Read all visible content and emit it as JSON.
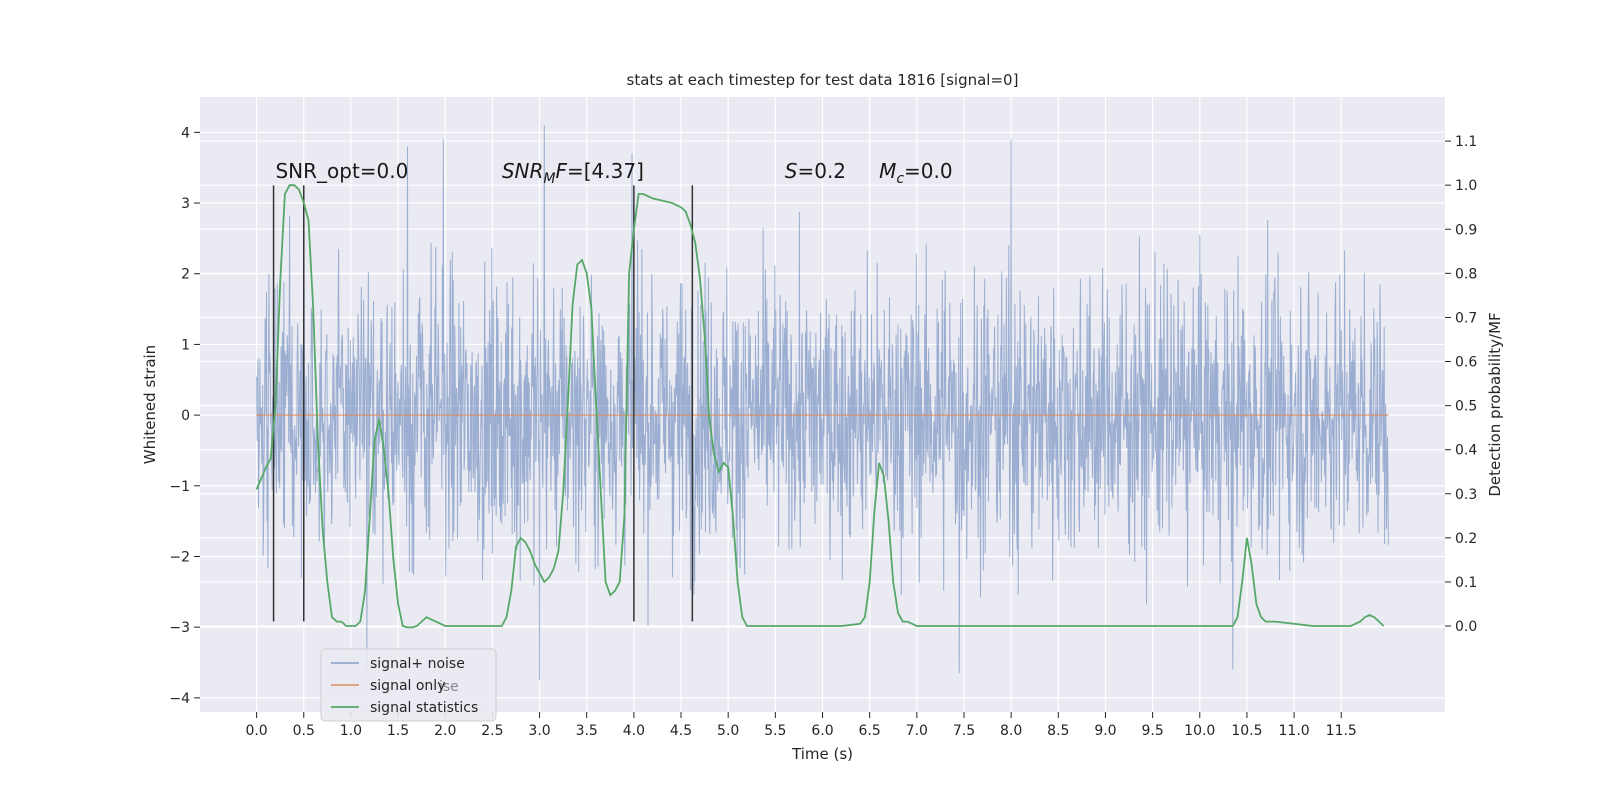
{
  "chart_data": {
    "type": "line",
    "title": "stats at each timestep for test data 1816 [signal=0]",
    "xlabel": "Time (s)",
    "ylabel_left": "Whitened strain",
    "ylabel_right": "Detection probability/MF",
    "xlim": [
      -0.6,
      12.6
    ],
    "ylim_left": [
      -4.2,
      4.5
    ],
    "ylim_right": [
      -0.195,
      1.2
    ],
    "x_ticks": [
      0.0,
      0.5,
      1.0,
      1.5,
      2.0,
      2.5,
      3.0,
      3.5,
      4.0,
      4.5,
      5.0,
      5.5,
      6.0,
      6.5,
      7.0,
      7.5,
      8.0,
      8.5,
      9.0,
      9.5,
      10.0,
      10.5,
      11.0,
      11.5
    ],
    "x_tick_labels": [
      "0.0",
      "0.5",
      "1.0",
      "1.5",
      "2.0",
      "2.5",
      "3.0",
      "3.5",
      "4.0",
      "4.5",
      "5.0",
      "5.5",
      "6.0",
      "6.5",
      "7.0",
      "7.5",
      "8.0",
      "8.5",
      "9.0",
      "9.5",
      "10.0",
      "10.5",
      "11.0",
      "11.5"
    ],
    "y_left_ticks": [
      -4,
      -3,
      -2,
      -1,
      0,
      1,
      2,
      3,
      4
    ],
    "y_left_tick_labels": [
      "−4",
      "−3",
      "−2",
      "−1",
      "0",
      "1",
      "2",
      "3",
      "4"
    ],
    "y_right_ticks": [
      0.0,
      0.1,
      0.2,
      0.3,
      0.4,
      0.5,
      0.6,
      0.7,
      0.8,
      0.9,
      1.0,
      1.1
    ],
    "y_right_tick_labels": [
      "0.0",
      "0.1",
      "0.2",
      "0.3",
      "0.4",
      "0.5",
      "0.6",
      "0.7",
      "0.8",
      "0.9",
      "1.0",
      "1.1"
    ],
    "grid": true,
    "series": [
      {
        "name": "signal+ noise",
        "color": "#4c72b0",
        "axis": "left",
        "note_range": [
          -3.75,
          4.1
        ],
        "x_range": [
          0.0,
          12.0
        ],
        "envelope_spikes": [
          {
            "x": 0.5,
            "y": 3.2
          },
          {
            "x": 1.6,
            "y": 3.8
          },
          {
            "x": 1.98,
            "y": 3.9
          },
          {
            "x": 3.05,
            "y": 4.1
          },
          {
            "x": 3.98,
            "y": 3.7
          },
          {
            "x": 8.0,
            "y": 3.9
          },
          {
            "x": 1.17,
            "y": -3.6
          },
          {
            "x": 3.0,
            "y": -3.75
          },
          {
            "x": 7.45,
            "y": -3.65
          },
          {
            "x": 10.35,
            "y": -3.6
          }
        ]
      },
      {
        "name": "signal only",
        "color": "#dd8452",
        "axis": "left",
        "x": [
          0.0,
          12.0
        ],
        "y": [
          0.0,
          0.0
        ]
      },
      {
        "name": "signal statistics",
        "color": "#55a868",
        "axis": "right",
        "x": [
          0.0,
          0.1,
          0.15,
          0.2,
          0.25,
          0.3,
          0.35,
          0.4,
          0.45,
          0.5,
          0.55,
          0.6,
          0.65,
          0.7,
          0.75,
          0.8,
          0.85,
          0.9,
          0.95,
          1.0,
          1.05,
          1.1,
          1.15,
          1.2,
          1.25,
          1.3,
          1.35,
          1.4,
          1.45,
          1.5,
          1.55,
          1.6,
          1.65,
          1.7,
          1.75,
          1.8,
          1.9,
          2.0,
          2.2,
          2.4,
          2.5,
          2.6,
          2.65,
          2.7,
          2.75,
          2.8,
          2.85,
          2.9,
          2.95,
          3.0,
          3.05,
          3.1,
          3.15,
          3.2,
          3.25,
          3.3,
          3.35,
          3.4,
          3.45,
          3.5,
          3.55,
          3.6,
          3.65,
          3.7,
          3.75,
          3.8,
          3.85,
          3.9,
          3.95,
          4.0,
          4.05,
          4.1,
          4.15,
          4.2,
          4.3,
          4.4,
          4.5,
          4.55,
          4.6,
          4.65,
          4.7,
          4.75,
          4.8,
          4.85,
          4.9,
          4.95,
          5.0,
          5.05,
          5.1,
          5.15,
          5.2,
          5.25,
          5.3,
          5.35,
          5.4,
          5.45,
          5.5,
          5.6,
          5.8,
          6.0,
          6.2,
          6.4,
          6.45,
          6.5,
          6.55,
          6.6,
          6.65,
          6.7,
          6.75,
          6.8,
          6.85,
          6.9,
          7.0,
          7.5,
          8.0,
          9.0,
          10.0,
          10.2,
          10.3,
          10.35,
          10.4,
          10.45,
          10.5,
          10.55,
          10.6,
          10.65,
          10.7,
          10.8,
          11.0,
          11.2,
          11.4,
          11.5,
          11.55,
          11.6,
          11.65,
          11.7,
          11.75,
          11.8,
          11.85,
          11.9,
          11.95
        ],
        "y": [
          0.31,
          0.36,
          0.38,
          0.5,
          0.78,
          0.98,
          1.0,
          1.0,
          0.99,
          0.96,
          0.92,
          0.72,
          0.42,
          0.22,
          0.1,
          0.02,
          0.01,
          0.01,
          0.0,
          0.0,
          0.0,
          0.01,
          0.08,
          0.25,
          0.42,
          0.47,
          0.4,
          0.3,
          0.15,
          0.05,
          0.0,
          -0.003,
          -0.003,
          0.0,
          0.01,
          0.02,
          0.01,
          0.0,
          0.0,
          0.0,
          0.0,
          0.0,
          0.02,
          0.08,
          0.18,
          0.2,
          0.19,
          0.17,
          0.14,
          0.12,
          0.1,
          0.11,
          0.13,
          0.17,
          0.3,
          0.5,
          0.73,
          0.82,
          0.83,
          0.8,
          0.72,
          0.5,
          0.3,
          0.1,
          0.07,
          0.08,
          0.1,
          0.25,
          0.8,
          0.9,
          0.98,
          0.98,
          0.975,
          0.97,
          0.965,
          0.96,
          0.95,
          0.94,
          0.91,
          0.87,
          0.79,
          0.66,
          0.47,
          0.39,
          0.35,
          0.37,
          0.36,
          0.25,
          0.1,
          0.02,
          0.0,
          0.0,
          0.0,
          0.0,
          0.0,
          0.0,
          0.0,
          0.0,
          0.0,
          0.0,
          0.0,
          0.005,
          0.02,
          0.1,
          0.26,
          0.37,
          0.34,
          0.24,
          0.1,
          0.03,
          0.01,
          0.01,
          0.0,
          0.0,
          0.0,
          0.0,
          0.0,
          0.0,
          0.0,
          0.0,
          0.02,
          0.1,
          0.2,
          0.14,
          0.05,
          0.02,
          0.01,
          0.01,
          0.005,
          0.0,
          0.0,
          0.0,
          0.0,
          0.0,
          0.005,
          0.01,
          0.02,
          0.025,
          0.02,
          0.01,
          0.0
        ]
      }
    ],
    "vertical_lines": [
      {
        "x": 0.18,
        "ymin": -2.92,
        "ymax": 3.25
      },
      {
        "x": 0.5,
        "ymin": -2.92,
        "ymax": 3.25
      },
      {
        "x": 4.0,
        "ymin": -2.92,
        "ymax": 3.25
      },
      {
        "x": 4.62,
        "ymin": -2.92,
        "ymax": 3.25
      }
    ],
    "annotations": [
      {
        "x": 0.2,
        "y": 3.3,
        "text": "SNR_opt=0.0",
        "italic_part": ""
      },
      {
        "x": 2.6,
        "y": 3.3,
        "text": "SNR",
        "sub": "M",
        "rest": "F=[4.37]"
      },
      {
        "x": 5.6,
        "y": 3.3,
        "text": "S",
        "rest": "=0.2"
      },
      {
        "x": 6.6,
        "y": 3.3,
        "text": "M",
        "sub": "c",
        "rest": "=0.0"
      }
    ],
    "legend": {
      "placement": "lower-left",
      "entries": [
        "signal+ noise",
        "signal only",
        "signal statistics"
      ],
      "ghost_text": "ise"
    },
    "colors": {
      "background": "#eaeaf2",
      "grid": "#ffffff",
      "vlines": "#333333"
    }
  }
}
